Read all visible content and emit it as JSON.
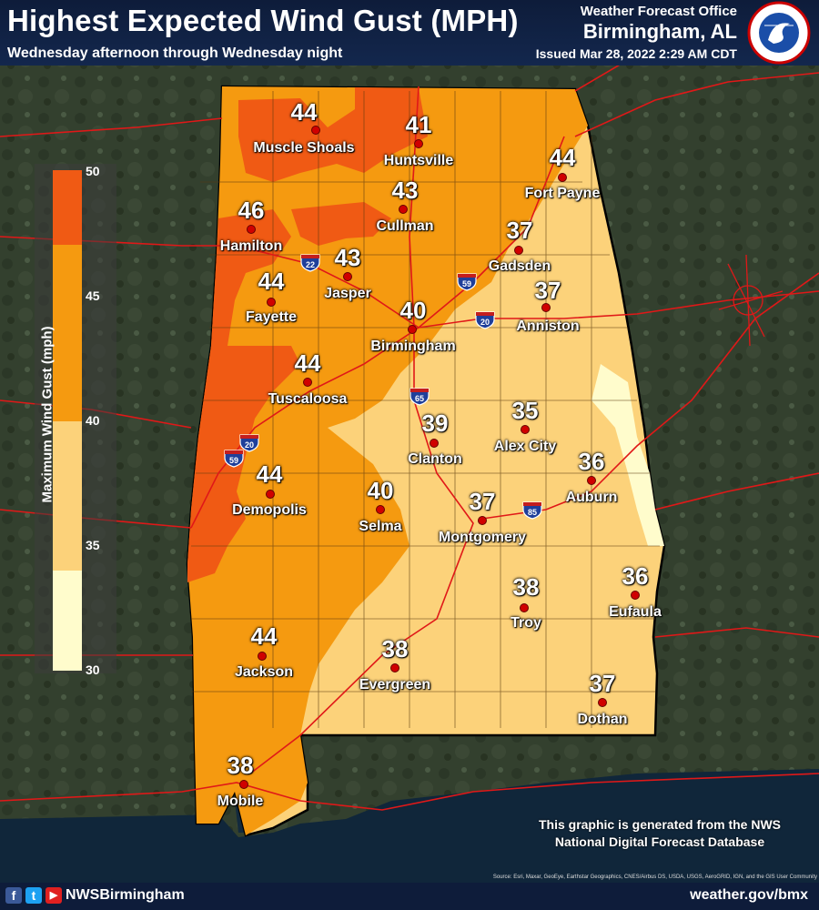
{
  "header": {
    "title": "Highest Expected Wind Gust (MPH)",
    "subtitle": "Wednesday afternoon through Wednesday night",
    "office_line1": "Weather Forecast Office",
    "office_line2": "Birmingham, AL",
    "issued": "Issued Mar 28, 2022 2:29 AM CDT"
  },
  "legend": {
    "label": "Maximum Wind Gust (mph)",
    "ticks": [
      "50",
      "45",
      "40",
      "35",
      "30"
    ],
    "colors": {
      "45-50": "#f05a14",
      "40-45": "#f59a10",
      "35-40": "#fcd27a",
      "30-35": "#fffccc"
    }
  },
  "cities": [
    {
      "name": "Muscle Shoals",
      "gust": "44"
    },
    {
      "name": "Huntsville",
      "gust": "41"
    },
    {
      "name": "Fort Payne",
      "gust": "44"
    },
    {
      "name": "Cullman",
      "gust": "43"
    },
    {
      "name": "Hamilton",
      "gust": "46"
    },
    {
      "name": "Gadsden",
      "gust": "37"
    },
    {
      "name": "Jasper",
      "gust": "43"
    },
    {
      "name": "Fayette",
      "gust": "44"
    },
    {
      "name": "Anniston",
      "gust": "37"
    },
    {
      "name": "Birmingham",
      "gust": "40"
    },
    {
      "name": "Tuscaloosa",
      "gust": "44"
    },
    {
      "name": "Alex City",
      "gust": "35"
    },
    {
      "name": "Clanton",
      "gust": "39"
    },
    {
      "name": "Auburn",
      "gust": "36"
    },
    {
      "name": "Demopolis",
      "gust": "44"
    },
    {
      "name": "Selma",
      "gust": "40"
    },
    {
      "name": "Montgomery",
      "gust": "37"
    },
    {
      "name": "Eufaula",
      "gust": "36"
    },
    {
      "name": "Troy",
      "gust": "38"
    },
    {
      "name": "Jackson",
      "gust": "44"
    },
    {
      "name": "Evergreen",
      "gust": "38"
    },
    {
      "name": "Dothan",
      "gust": "37"
    },
    {
      "name": "Mobile",
      "gust": "38"
    }
  ],
  "interstates": [
    "22",
    "59",
    "20",
    "65",
    "20",
    "59",
    "85"
  ],
  "note": {
    "line1": "This graphic is generated from the NWS",
    "line2": "National Digital Forecast Database"
  },
  "source": "Source: Esri, Maxar, GeoEye, Earthstar Geographics, CNES/Airbus DS, USDA, USGS, AeroGRID, IGN, and the GIS User Community",
  "footer": {
    "social_handle": "NWSBirmingham",
    "website": "weather.gov/bmx",
    "icons": [
      "facebook-icon",
      "twitter-icon",
      "youtube-icon"
    ]
  }
}
